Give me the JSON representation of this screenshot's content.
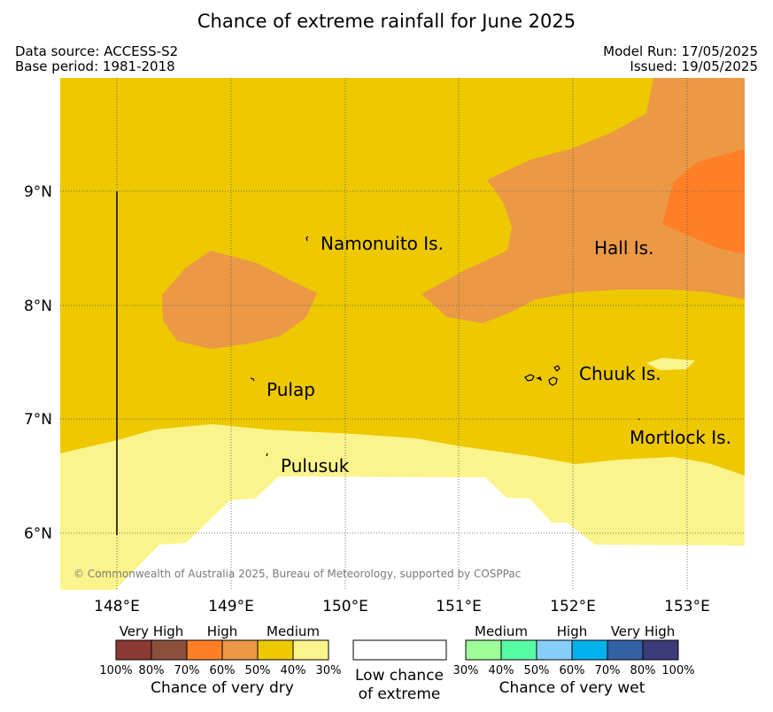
{
  "title": "Chance of extreme rainfall for June 2025",
  "meta": {
    "data_source": "Data source: ACCESS-S2",
    "base_period": "Base period: 1981-2018",
    "model_run": "Model Run: 17/05/2025",
    "issued": "Issued: 19/05/2025"
  },
  "map": {
    "lon_ticks": [
      "148°E",
      "149°E",
      "150°E",
      "151°E",
      "152°E",
      "153°E"
    ],
    "lat_ticks": [
      "9°N",
      "8°N",
      "7°N",
      "6°N"
    ],
    "places": [
      {
        "name": "Namonuito Is.",
        "lon": 149.7,
        "lat": 8.55
      },
      {
        "name": "Hall Is.",
        "lon": 152.15,
        "lat": 8.5
      },
      {
        "name": "Pulap",
        "lon": 149.3,
        "lat": 7.35
      },
      {
        "name": "Chuuk Is.",
        "lon": 151.85,
        "lat": 7.4
      },
      {
        "name": "Mortlock Is.",
        "lon": 152.6,
        "lat": 6.95
      },
      {
        "name": "Pulusuk",
        "lon": 149.3,
        "lat": 6.7
      }
    ],
    "copyright": "© Commonwealth of Australia 2025, Bureau of Meteorology, supported by COSPPac",
    "colors": {
      "medium_dry": "#eec800",
      "high_dry": "#eb9945",
      "high_dry_60": "#ff7f27",
      "low_dry": "#fbf48c",
      "none": "#ffffff"
    }
  },
  "legend": {
    "dry": {
      "labels": [
        "Very High",
        "High",
        "Medium"
      ],
      "percents": [
        "100%",
        "80%",
        "70%",
        "60%",
        "50%",
        "40%",
        "30%"
      ],
      "colors": [
        "#8b3a33",
        "#8b503b",
        "#ff7f27",
        "#eb9945",
        "#eec800",
        "#fbf48c"
      ],
      "caption": "Chance of very dry"
    },
    "neutral": {
      "line1": "Low chance",
      "line2": "of extreme"
    },
    "wet": {
      "labels": [
        "Medium",
        "High",
        "Very High"
      ],
      "percents": [
        "30%",
        "40%",
        "50%",
        "60%",
        "70%",
        "80%",
        "100%"
      ],
      "colors": [
        "#9dfd97",
        "#57fda5",
        "#87cefa",
        "#00b1ee",
        "#3460a4",
        "#3b3b78"
      ],
      "caption": "Chance of very wet"
    }
  }
}
